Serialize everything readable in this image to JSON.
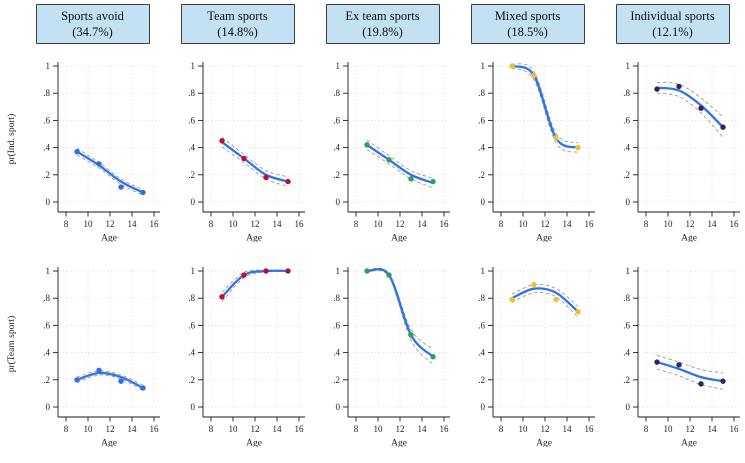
{
  "columns": [
    {
      "title": "Sports avoid",
      "pct": "(34.7%)"
    },
    {
      "title": "Team sports",
      "pct": "(14.8%)"
    },
    {
      "title": "Ex team sports",
      "pct": "(19.8%)"
    },
    {
      "title": "Mixed sports",
      "pct": "(18.5%)"
    },
    {
      "title": "Individual sports",
      "pct": "(12.1%)"
    }
  ],
  "rows": [
    {
      "ylabel": "pr(Ind. sport)"
    },
    {
      "ylabel": "pr(Team sport)"
    }
  ],
  "axis": {
    "xlabel": "Age",
    "xticks": [
      8,
      10,
      12,
      14,
      16
    ],
    "ytick_labels": [
      "0",
      ".2",
      ".4",
      ".6",
      ".8",
      "1"
    ],
    "ytick_values": [
      0,
      0.2,
      0.4,
      0.6,
      0.8,
      1
    ],
    "xrange": [
      8,
      16
    ],
    "yrange": [
      0,
      1
    ],
    "grid": true
  },
  "colors": {
    "line": "#2f74e6",
    "ci": "#9b9b9b",
    "grid": "#dcdcdc",
    "axis": "#1a1a1a",
    "tick_text": "#1c1c1c",
    "header_fill": "#c2e1f2",
    "header_border": "#3c3c3c",
    "points": {
      "sports_avoid": "#2f6fdf",
      "team_sports": "#c10a3c",
      "ex_team_sports": "#2aa05f",
      "mixed_sports": "#f0c12b",
      "individual_sports": "#371f68"
    }
  },
  "chart_data": [
    {
      "type": "line",
      "row": "pr(Ind. sport)",
      "group": "Sports avoid",
      "x": [
        9,
        11,
        13,
        15
      ],
      "points": [
        0.37,
        0.28,
        0.11,
        0.07
      ],
      "line": [
        0.37,
        0.27,
        0.15,
        0.07
      ],
      "ci_half_width": [
        0.025,
        0.02,
        0.02,
        0.02
      ],
      "point_color": "#2f6fdf"
    },
    {
      "type": "line",
      "row": "pr(Ind. sport)",
      "group": "Team sports",
      "x": [
        9,
        11,
        13,
        15
      ],
      "points": [
        0.45,
        0.32,
        0.18,
        0.15
      ],
      "line": [
        0.44,
        0.32,
        0.2,
        0.15
      ],
      "ci_half_width": [
        0.035,
        0.03,
        0.03,
        0.035
      ],
      "point_color": "#c10a3c"
    },
    {
      "type": "line",
      "row": "pr(Ind. sport)",
      "group": "Ex team sports",
      "x": [
        9,
        11,
        13,
        15
      ],
      "points": [
        0.42,
        0.31,
        0.17,
        0.15
      ],
      "line": [
        0.42,
        0.31,
        0.2,
        0.14
      ],
      "ci_half_width": [
        0.035,
        0.03,
        0.03,
        0.035
      ],
      "point_color": "#2aa05f"
    },
    {
      "type": "line",
      "row": "pr(Ind. sport)",
      "group": "Mixed sports",
      "x": [
        9,
        11,
        13,
        15
      ],
      "points": [
        1.0,
        0.93,
        0.47,
        0.4
      ],
      "line": [
        1.0,
        0.93,
        0.47,
        0.4
      ],
      "ci_half_width": [
        0.015,
        0.03,
        0.035,
        0.035
      ],
      "point_color": "#f0c12b"
    },
    {
      "type": "line",
      "row": "pr(Ind. sport)",
      "group": "Individual sports",
      "x": [
        9,
        11,
        13,
        15
      ],
      "points": [
        0.83,
        0.85,
        0.69,
        0.55
      ],
      "line": [
        0.84,
        0.82,
        0.71,
        0.55
      ],
      "ci_half_width": [
        0.04,
        0.045,
        0.055,
        0.075
      ],
      "point_color": "#371f68"
    },
    {
      "type": "line",
      "row": "pr(Team sport)",
      "group": "Sports avoid",
      "x": [
        9,
        11,
        13,
        15
      ],
      "points": [
        0.2,
        0.27,
        0.19,
        0.14
      ],
      "line": [
        0.2,
        0.25,
        0.22,
        0.14
      ],
      "ci_half_width": [
        0.02,
        0.015,
        0.015,
        0.02
      ],
      "point_color": "#2f6fdf"
    },
    {
      "type": "line",
      "row": "pr(Team sport)",
      "group": "Team sports",
      "x": [
        9,
        11,
        13,
        15
      ],
      "points": [
        0.81,
        0.97,
        1.0,
        1.0
      ],
      "line": [
        0.81,
        0.97,
        1.0,
        1.0
      ],
      "ci_half_width": [
        0.035,
        0.02,
        0.006,
        0.006
      ],
      "point_color": "#c10a3c"
    },
    {
      "type": "line",
      "row": "pr(Team sport)",
      "group": "Ex team sports",
      "x": [
        9,
        11,
        13,
        15
      ],
      "points": [
        1.0,
        0.97,
        0.53,
        0.37
      ],
      "line": [
        1.0,
        0.97,
        0.53,
        0.37
      ],
      "ci_half_width": [
        0.008,
        0.012,
        0.04,
        0.055
      ],
      "point_color": "#2aa05f"
    },
    {
      "type": "line",
      "row": "pr(Team sport)",
      "group": "Mixed sports",
      "x": [
        9,
        11,
        13,
        15
      ],
      "points": [
        0.79,
        0.9,
        0.79,
        0.7
      ],
      "line": [
        0.8,
        0.87,
        0.84,
        0.7
      ],
      "ci_half_width": [
        0.03,
        0.03,
        0.03,
        0.04
      ],
      "point_color": "#f0c12b"
    },
    {
      "type": "line",
      "row": "pr(Team sport)",
      "group": "Individual sports",
      "x": [
        9,
        11,
        13,
        15
      ],
      "points": [
        0.33,
        0.31,
        0.17,
        0.19
      ],
      "line": [
        0.33,
        0.28,
        0.22,
        0.19
      ],
      "ci_half_width": [
        0.05,
        0.05,
        0.055,
        0.06
      ],
      "point_color": "#371f68"
    }
  ]
}
